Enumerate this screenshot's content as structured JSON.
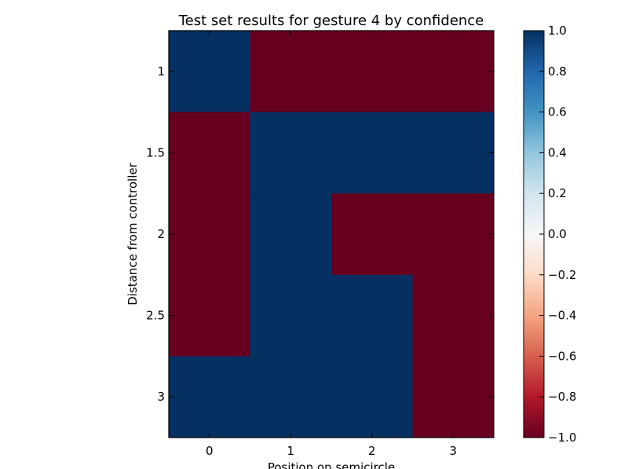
{
  "chart_data": {
    "type": "heatmap",
    "title": "Test set results for gesture 4 by confidence",
    "xlabel": "Position on semicircle",
    "ylabel": "Distance from controller",
    "x_ticks": [
      "0",
      "1",
      "2",
      "3"
    ],
    "y_ticks": [
      "1",
      "1.5",
      "2",
      "2.5",
      "3"
    ],
    "x": [
      0,
      1,
      2,
      3
    ],
    "y": [
      1,
      1.5,
      2,
      2.5,
      3
    ],
    "values": [
      [
        1,
        -1,
        -1,
        -1
      ],
      [
        -1,
        1,
        1,
        1
      ],
      [
        -1,
        1,
        -1,
        -1
      ],
      [
        -1,
        1,
        1,
        -1
      ],
      [
        1,
        1,
        1,
        -1
      ]
    ],
    "vmin": -1,
    "vmax": 1,
    "colormap": "RdBu",
    "colorbar": {
      "ticks": [
        1.0,
        0.8,
        0.6,
        0.4,
        0.2,
        0.0,
        -0.2,
        -0.4,
        -0.6,
        -0.8,
        -1.0
      ],
      "tick_labels": [
        "1.0",
        "0.8",
        "0.6",
        "0.4",
        "0.2",
        "0.0",
        "−0.2",
        "−0.4",
        "−0.6",
        "−0.8",
        "−1.0"
      ]
    },
    "colors": {
      "max": "#053061",
      "min": "#67001f"
    }
  }
}
